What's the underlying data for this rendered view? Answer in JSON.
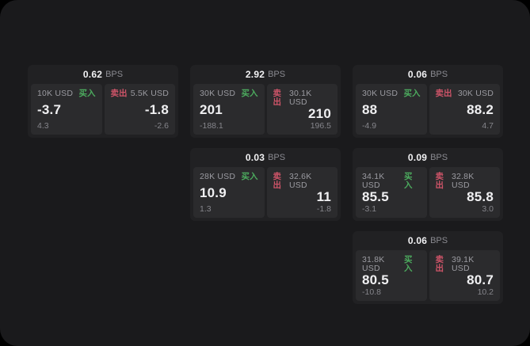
{
  "labels": {
    "buy": "买入",
    "sell": "卖出",
    "bps": "BPS"
  },
  "colors": {
    "outer_bg": "#000000",
    "window_bg": "#1a1a1c",
    "card_bg": "#212123",
    "panel_bg": "#2b2b2d",
    "buy_green": "#4cab5e",
    "sell_red": "#cd5468",
    "price_text": "#f0f0f2",
    "label_text": "#9b9ba1",
    "delta_text": "#85858b"
  },
  "cards": [
    {
      "col": 1,
      "row": 1,
      "spread": "0.62",
      "buy": {
        "amount": "10K USD",
        "price": "-3.7",
        "delta": "4.3"
      },
      "sell": {
        "amount": "5.5K USD",
        "price": "-1.8",
        "delta": "-2.6"
      }
    },
    {
      "col": 2,
      "row": 1,
      "spread": "2.92",
      "buy": {
        "amount": "30K USD",
        "price": "201",
        "delta": "-188.1"
      },
      "sell": {
        "amount": "30.1K USD",
        "price": "210",
        "delta": "196.5"
      }
    },
    {
      "col": 3,
      "row": 1,
      "spread": "0.06",
      "buy": {
        "amount": "30K USD",
        "price": "88",
        "delta": "-4.9"
      },
      "sell": {
        "amount": "30K USD",
        "price": "88.2",
        "delta": "4.7"
      }
    },
    {
      "col": 2,
      "row": 2,
      "spread": "0.03",
      "buy": {
        "amount": "28K USD",
        "price": "10.9",
        "delta": "1.3"
      },
      "sell": {
        "amount": "32.6K USD",
        "price": "11",
        "delta": "-1.8"
      }
    },
    {
      "col": 3,
      "row": 2,
      "spread": "0.09",
      "buy": {
        "amount": "34.1K USD",
        "price": "85.5",
        "delta": "-3.1"
      },
      "sell": {
        "amount": "32.8K USD",
        "price": "85.8",
        "delta": "3.0"
      }
    },
    {
      "col": 3,
      "row": 3,
      "spread": "0.06",
      "buy": {
        "amount": "31.8K USD",
        "price": "80.5",
        "delta": "-10.8"
      },
      "sell": {
        "amount": "39.1K USD",
        "price": "80.7",
        "delta": "10.2"
      }
    }
  ]
}
